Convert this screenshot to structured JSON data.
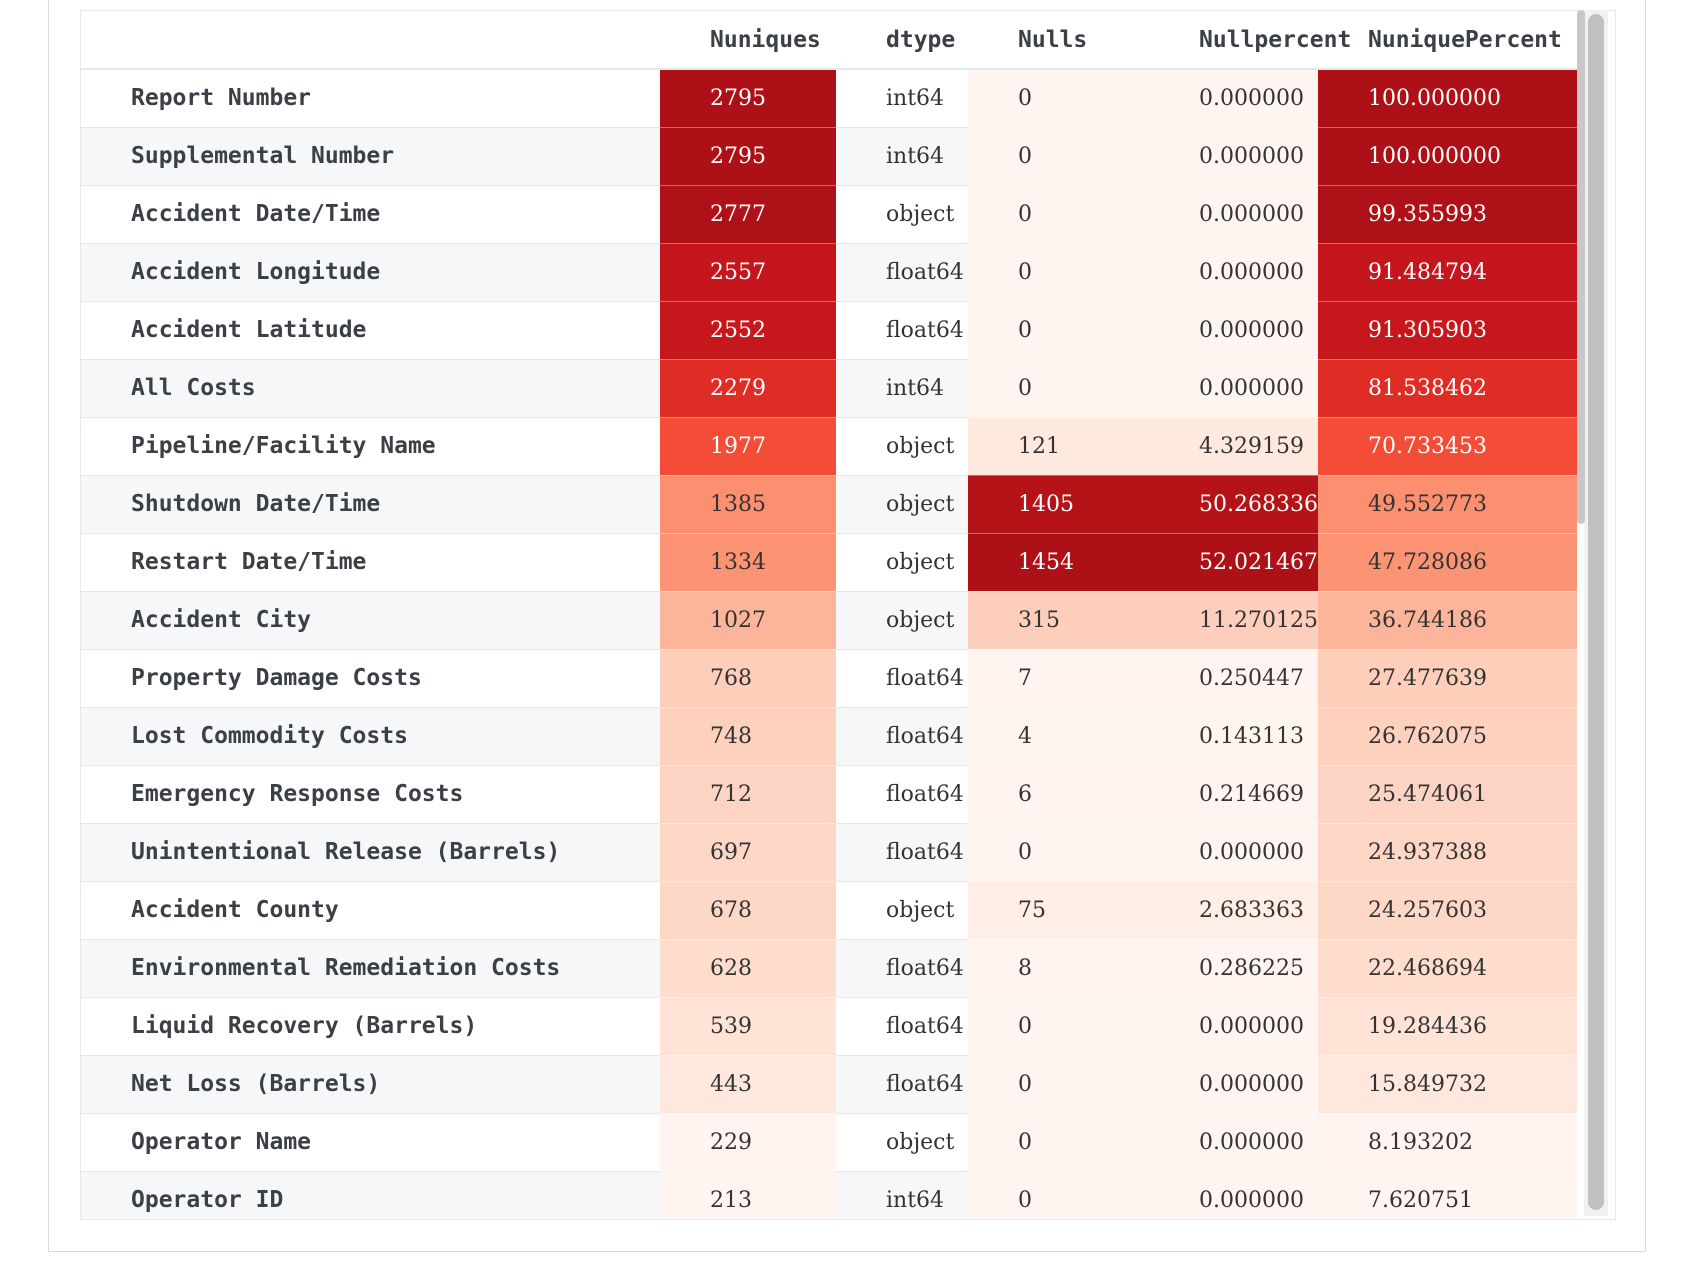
{
  "table": {
    "columns": [
      "",
      "Nuniques",
      "dtype",
      "Nulls",
      "Nullpercent",
      "NuniquePercent"
    ],
    "rows": [
      {
        "name": "Report Number",
        "nuniques": "2795",
        "dtype": "int64",
        "nulls": "0",
        "nullpercent": "0.000000",
        "nuniquepercent": "100.000000"
      },
      {
        "name": "Supplemental Number",
        "nuniques": "2795",
        "dtype": "int64",
        "nulls": "0",
        "nullpercent": "0.000000",
        "nuniquepercent": "100.000000"
      },
      {
        "name": "Accident Date/Time",
        "nuniques": "2777",
        "dtype": "object",
        "nulls": "0",
        "nullpercent": "0.000000",
        "nuniquepercent": "99.355993"
      },
      {
        "name": "Accident Longitude",
        "nuniques": "2557",
        "dtype": "float64",
        "nulls": "0",
        "nullpercent": "0.000000",
        "nuniquepercent": "91.484794"
      },
      {
        "name": "Accident Latitude",
        "nuniques": "2552",
        "dtype": "float64",
        "nulls": "0",
        "nullpercent": "0.000000",
        "nuniquepercent": "91.305903"
      },
      {
        "name": "All Costs",
        "nuniques": "2279",
        "dtype": "int64",
        "nulls": "0",
        "nullpercent": "0.000000",
        "nuniquepercent": "81.538462"
      },
      {
        "name": "Pipeline/Facility Name",
        "nuniques": "1977",
        "dtype": "object",
        "nulls": "121",
        "nullpercent": "4.329159",
        "nuniquepercent": "70.733453"
      },
      {
        "name": "Shutdown Date/Time",
        "nuniques": "1385",
        "dtype": "object",
        "nulls": "1405",
        "nullpercent": "50.268336",
        "nuniquepercent": "49.552773"
      },
      {
        "name": "Restart Date/Time",
        "nuniques": "1334",
        "dtype": "object",
        "nulls": "1454",
        "nullpercent": "52.021467",
        "nuniquepercent": "47.728086"
      },
      {
        "name": "Accident City",
        "nuniques": "1027",
        "dtype": "object",
        "nulls": "315",
        "nullpercent": "11.270125",
        "nuniquepercent": "36.744186"
      },
      {
        "name": "Property Damage Costs",
        "nuniques": "768",
        "dtype": "float64",
        "nulls": "7",
        "nullpercent": "0.250447",
        "nuniquepercent": "27.477639"
      },
      {
        "name": "Lost Commodity Costs",
        "nuniques": "748",
        "dtype": "float64",
        "nulls": "4",
        "nullpercent": "0.143113",
        "nuniquepercent": "26.762075"
      },
      {
        "name": "Emergency Response Costs",
        "nuniques": "712",
        "dtype": "float64",
        "nulls": "6",
        "nullpercent": "0.214669",
        "nuniquepercent": "25.474061"
      },
      {
        "name": "Unintentional Release (Barrels)",
        "nuniques": "697",
        "dtype": "float64",
        "nulls": "0",
        "nullpercent": "0.000000",
        "nuniquepercent": "24.937388"
      },
      {
        "name": "Accident County",
        "nuniques": "678",
        "dtype": "object",
        "nulls": "75",
        "nullpercent": "2.683363",
        "nuniquepercent": "24.257603"
      },
      {
        "name": "Environmental Remediation Costs",
        "nuniques": "628",
        "dtype": "float64",
        "nulls": "8",
        "nullpercent": "0.286225",
        "nuniquepercent": "22.468694"
      },
      {
        "name": "Liquid Recovery (Barrels)",
        "nuniques": "539",
        "dtype": "float64",
        "nulls": "0",
        "nullpercent": "0.000000",
        "nuniquepercent": "19.284436"
      },
      {
        "name": "Net Loss (Barrels)",
        "nuniques": "443",
        "dtype": "float64",
        "nulls": "0",
        "nullpercent": "0.000000",
        "nuniquepercent": "15.849732"
      },
      {
        "name": "Operator Name",
        "nuniques": "229",
        "dtype": "object",
        "nulls": "0",
        "nullpercent": "0.000000",
        "nuniquepercent": "8.193202"
      },
      {
        "name": "Operator ID",
        "nuniques": "213",
        "dtype": "int64",
        "nulls": "0",
        "nullpercent": "0.000000",
        "nuniquepercent": "7.620751"
      }
    ]
  },
  "colormap": {
    "name": "Reds",
    "stops": [
      "#fff5f0",
      "#fee0d2",
      "#fcbba1",
      "#fc9272",
      "#fb6a4a",
      "#ef3b2c",
      "#cb181d",
      "#a50f15",
      "#67000d"
    ],
    "dark_text": "#333333",
    "light_text": "#ffffff"
  }
}
